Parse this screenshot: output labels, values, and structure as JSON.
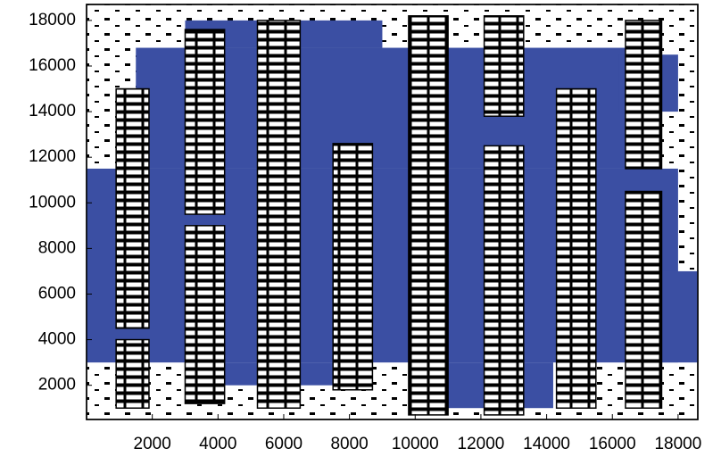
{
  "chart_data": {
    "type": "layout",
    "xlim": [
      0,
      18600
    ],
    "ylim": [
      500,
      18700
    ],
    "xticks": [
      2000,
      4000,
      6000,
      8000,
      10000,
      12000,
      14000,
      16000,
      18000
    ],
    "yticks": [
      2000,
      4000,
      6000,
      8000,
      10000,
      12000,
      14000,
      16000,
      18000
    ],
    "region_color": "#3b4fa3",
    "regions": [
      [
        0,
        18000,
        3000,
        11500
      ],
      [
        1500,
        17000,
        11500,
        16800
      ],
      [
        3000,
        9000,
        16800,
        18000
      ],
      [
        10000,
        14200,
        1000,
        3000
      ],
      [
        16200,
        18000,
        14000,
        16500
      ],
      [
        4000,
        8500,
        2000,
        3000
      ],
      [
        16500,
        18600,
        3000,
        7000
      ]
    ],
    "blocks": [
      [
        900,
        1900,
        4500,
        15000
      ],
      [
        900,
        1900,
        1000,
        4000
      ],
      [
        3000,
        4200,
        9500,
        17600
      ],
      [
        3000,
        4200,
        1200,
        9000
      ],
      [
        5200,
        6500,
        1000,
        18000
      ],
      [
        7500,
        8700,
        1800,
        12600
      ],
      [
        9800,
        11000,
        700,
        18200
      ],
      [
        12100,
        13300,
        700,
        12500
      ],
      [
        12100,
        13300,
        13800,
        18200
      ],
      [
        14300,
        15500,
        1000,
        15000
      ],
      [
        16400,
        17500,
        1000,
        10500
      ],
      [
        16400,
        17500,
        11500,
        18000
      ]
    ]
  }
}
